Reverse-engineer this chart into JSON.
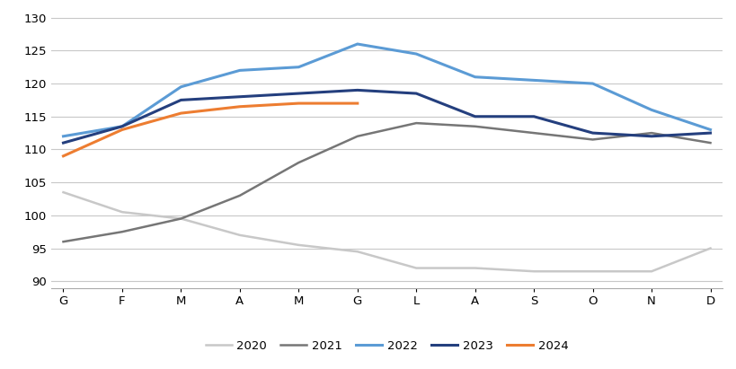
{
  "months": [
    "G",
    "F",
    "M",
    "A",
    "M",
    "G",
    "L",
    "A",
    "S",
    "O",
    "N",
    "D"
  ],
  "series": {
    "2020": [
      103.5,
      100.5,
      99.5,
      97.0,
      95.5,
      94.5,
      92.0,
      92.0,
      91.5,
      91.5,
      91.5,
      95.0
    ],
    "2021": [
      96.0,
      97.5,
      99.5,
      103.0,
      108.0,
      112.0,
      114.0,
      113.5,
      112.5,
      111.5,
      112.5,
      111.0
    ],
    "2022": [
      112.0,
      113.5,
      119.5,
      122.0,
      122.5,
      126.0,
      124.5,
      121.0,
      120.5,
      120.0,
      116.0,
      113.0
    ],
    "2023": [
      111.0,
      113.5,
      117.5,
      118.0,
      118.5,
      119.0,
      118.5,
      115.0,
      115.0,
      112.5,
      112.0,
      112.5
    ],
    "2024": [
      109.0,
      113.0,
      115.5,
      116.5,
      117.0,
      117.0,
      null,
      null,
      null,
      null,
      null,
      null
    ]
  },
  "series_order": [
    "2020",
    "2021",
    "2022",
    "2023",
    "2024"
  ],
  "colors": {
    "2020": "#c8c8c8",
    "2021": "#767676",
    "2022": "#5b9bd5",
    "2023": "#243f7e",
    "2024": "#ed7d31"
  },
  "linewidths": {
    "2020": 1.8,
    "2021": 1.8,
    "2022": 2.2,
    "2023": 2.2,
    "2024": 2.2
  },
  "ylim": [
    89,
    131
  ],
  "yticks": [
    90,
    95,
    100,
    105,
    110,
    115,
    120,
    125,
    130
  ],
  "background_color": "#ffffff",
  "grid_color": "#c8c8c8",
  "legend_labels": [
    "2020",
    "2021",
    "2022",
    "2023",
    "2024"
  ]
}
